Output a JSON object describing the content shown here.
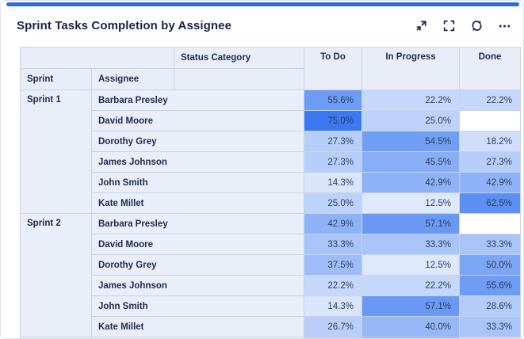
{
  "widget": {
    "title": "Sprint Tasks Completion by Assignee",
    "accent_color": "#2d6be4"
  },
  "toolbar": {
    "buttons": [
      {
        "icon": "collapse-icon"
      },
      {
        "icon": "fullscreen-icon"
      },
      {
        "icon": "refresh-icon"
      },
      {
        "icon": "more-options-icon"
      }
    ],
    "icon_color": "#1e2b50"
  },
  "table_headers": {
    "column_dimension": "Status Category",
    "row_dimensions": [
      "Sprint",
      "Assignee"
    ]
  },
  "chart_data": {
    "type": "heatmap",
    "title": "Sprint Tasks Completion by Assignee",
    "columns": [
      "To Do",
      "In Progress",
      "Done"
    ],
    "row_dimensions": [
      "Sprint",
      "Assignee"
    ],
    "column_dimension": "Status Category",
    "value_suffix": "%",
    "color_scale": {
      "min": "#ffffff",
      "max": "#3a79f1",
      "domain": [
        0,
        75
      ]
    },
    "groups": [
      {
        "sprint": "Sprint 1",
        "rows": [
          {
            "assignee": "Barbara Presley",
            "values": [
              55.6,
              22.2,
              22.2
            ]
          },
          {
            "assignee": "David Moore",
            "values": [
              75.0,
              25.0,
              null
            ]
          },
          {
            "assignee": "Dorothy Grey",
            "values": [
              27.3,
              54.5,
              18.2
            ]
          },
          {
            "assignee": "James Johnson",
            "values": [
              27.3,
              45.5,
              27.3
            ]
          },
          {
            "assignee": "John Smith",
            "values": [
              14.3,
              42.9,
              42.9
            ]
          },
          {
            "assignee": "Kate Millet",
            "values": [
              25.0,
              12.5,
              62.5
            ]
          }
        ]
      },
      {
        "sprint": "Sprint 2",
        "rows": [
          {
            "assignee": "Barbara Presley",
            "values": [
              42.9,
              57.1,
              null
            ]
          },
          {
            "assignee": "David Moore",
            "values": [
              33.3,
              33.3,
              33.3
            ]
          },
          {
            "assignee": "Dorothy Grey",
            "values": [
              37.5,
              12.5,
              50.0
            ]
          },
          {
            "assignee": "James Johnson",
            "values": [
              22.2,
              22.2,
              55.6
            ]
          },
          {
            "assignee": "John Smith",
            "values": [
              14.3,
              57.1,
              28.6
            ]
          },
          {
            "assignee": "Kate Millet",
            "values": [
              26.7,
              40.0,
              33.3
            ]
          }
        ]
      }
    ],
    "partial_next_row_colors": [
      "#e9eef8",
      "#e9eef8",
      "#a9c6f8",
      "#7fa9f4",
      "#bdd3fa"
    ]
  }
}
